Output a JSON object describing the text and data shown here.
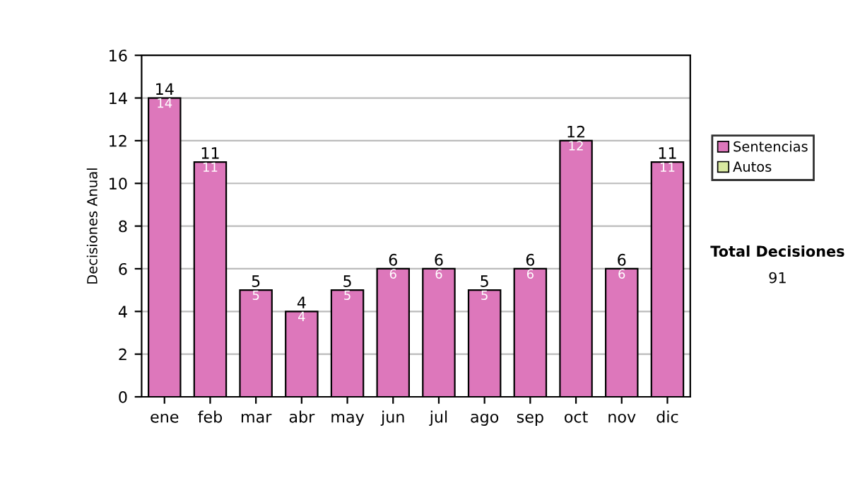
{
  "chart_data": {
    "type": "bar",
    "ylabel": "Decisiones Anual",
    "categories": [
      "ene",
      "feb",
      "mar",
      "abr",
      "may",
      "jun",
      "jul",
      "ago",
      "sep",
      "oct",
      "nov",
      "dic"
    ],
    "series": [
      {
        "name": "Sentencias",
        "color": "#dd77bb",
        "values": [
          14,
          11,
          5,
          4,
          5,
          6,
          6,
          5,
          6,
          12,
          6,
          11
        ]
      },
      {
        "name": "Autos",
        "color": "#d8e8a0",
        "values": [
          null,
          null,
          null,
          null,
          null,
          null,
          null,
          null,
          null,
          null,
          null,
          null
        ]
      }
    ],
    "stacked": true,
    "data_labels": true,
    "totals": [
      "14",
      "11",
      "5",
      "4",
      "5",
      "6",
      "6",
      "5",
      "6",
      "12",
      "6",
      "11"
    ],
    "ylim": [
      0,
      16
    ],
    "yticks": [
      0,
      2,
      4,
      6,
      8,
      10,
      12,
      14,
      16
    ],
    "grid": "y",
    "legend": "right",
    "annotations": [
      "Total Decisiones",
      "91"
    ]
  }
}
